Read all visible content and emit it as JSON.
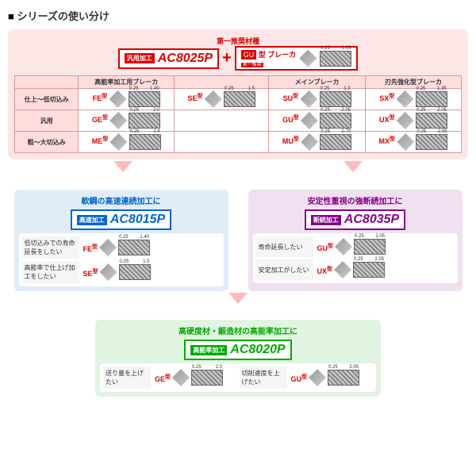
{
  "title": "シリーズの使い分け",
  "top": {
    "recommend_label": "第一推奨材種",
    "main_grade": {
      "tag": "汎用加工",
      "name": "AC8025P"
    },
    "breaker": {
      "tag": "GU",
      "suffix": "型 ブレーカ",
      "subtag": "第一推奨",
      "width": "2.05"
    },
    "plus": "+"
  },
  "matrix": {
    "col_headers": [
      "",
      "高能率加工用ブレーカ",
      "",
      "メインブレーカ",
      "刃先強化型ブレーカ"
    ],
    "rows": [
      {
        "label": "仕上～低切込み",
        "cells": [
          {
            "type": "FE",
            "w": "1.40"
          },
          {
            "type": "SE",
            "w": "1.5"
          },
          {
            "type": "SU",
            "w": "1.3"
          },
          {
            "type": "SX",
            "w": "1.35"
          }
        ]
      },
      {
        "label": "汎用",
        "cells": [
          {
            "type": "GE",
            "w": "2.0"
          },
          {
            "type": "",
            "w": ""
          },
          {
            "type": "GU",
            "w": "2.05"
          },
          {
            "type": "UX",
            "w": "2.05"
          }
        ]
      },
      {
        "label": "粗～大切込み",
        "cells": [
          {
            "type": "ME",
            "w": "2.4"
          },
          {
            "type": "",
            "w": ""
          },
          {
            "type": "MU",
            "w": "2.70"
          },
          {
            "type": "MX",
            "w": "2.05"
          }
        ]
      }
    ]
  },
  "sub": [
    {
      "color": "blue",
      "caption": "軟鋼の高速連続加工に",
      "tag": "高速加工",
      "name": "AC8015P",
      "items": [
        {
          "label": "低切込みでの寿命延長をしたい",
          "type": "FE",
          "w": "1.40"
        },
        {
          "label": "高能率で仕上げ加工をしたい",
          "type": "SE",
          "w": "1.5"
        }
      ]
    },
    {
      "color": "purple",
      "caption": "安定性重視の強断続加工に",
      "tag": "断続加工",
      "name": "AC8035P",
      "items": [
        {
          "label": "寿命延長したい",
          "type": "GU",
          "w": "2.05"
        },
        {
          "label": "安定加工がしたい",
          "type": "UX",
          "w": "2.05"
        }
      ]
    }
  ],
  "bottom": {
    "color": "green",
    "caption": "高硬度材・鍛造材の高能率加工に",
    "tag": "高能率加工",
    "name": "AC8020P",
    "items": [
      {
        "label": "送り量を上げたい",
        "type": "GE",
        "w": "2.0"
      },
      {
        "label": "切削速度を上げたい",
        "type": "GU",
        "w": "2.05"
      }
    ]
  },
  "type_suffix": "型",
  "colors": {
    "red": "#d00",
    "blue": "#06c",
    "purple": "#808",
    "green": "#0a0",
    "main_bg": "#fde6e6"
  }
}
